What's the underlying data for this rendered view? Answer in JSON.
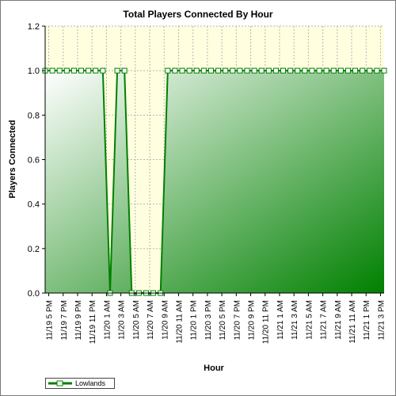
{
  "chart_data": {
    "type": "area",
    "title": "Total Players Connected By Hour",
    "xlabel": "Hour",
    "ylabel": "Players Connected",
    "ylim": [
      0,
      1.2
    ],
    "yticks": [
      "0.0",
      "0.2",
      "0.4",
      "0.6",
      "0.8",
      "1.0",
      "1.2"
    ],
    "grid": true,
    "legend": "bottom-left",
    "tick_labels": [
      "11/19 5 PM",
      "11/19 7 PM",
      "11/19 9 PM",
      "11/19 11 PM",
      "11/20 1 AM",
      "11/20 3 AM",
      "11/20 5 AM",
      "11/20 7 AM",
      "11/20 9 AM",
      "11/20 11 AM",
      "11/20 1 PM",
      "11/20 3 PM",
      "11/20 5 PM",
      "11/20 7 PM",
      "11/20 9 PM",
      "11/20 11 PM",
      "11/21 1 AM",
      "11/21 3 AM",
      "11/21 5 AM",
      "11/21 7 AM",
      "11/21 9 AM",
      "11/21 11 AM",
      "11/21 1 PM",
      "11/21 3 PM"
    ],
    "series": [
      {
        "name": "Lowlands",
        "values": [
          1,
          1,
          1,
          1,
          1,
          1,
          1,
          1,
          1,
          0,
          1,
          1,
          0,
          0,
          0,
          0,
          0,
          1,
          1,
          1,
          1,
          1,
          1,
          1,
          1,
          1,
          1,
          1,
          1,
          1,
          1,
          1,
          1,
          1,
          1,
          1,
          1,
          1,
          1,
          1,
          1,
          1,
          1,
          1,
          1,
          1,
          1,
          1
        ]
      }
    ],
    "colors": {
      "line": "#008000",
      "fill_dark": "#008000",
      "fill_light": "#ffffff",
      "plot_upper_bg": "#ffffe0",
      "grid": "#b4b4b4"
    }
  }
}
